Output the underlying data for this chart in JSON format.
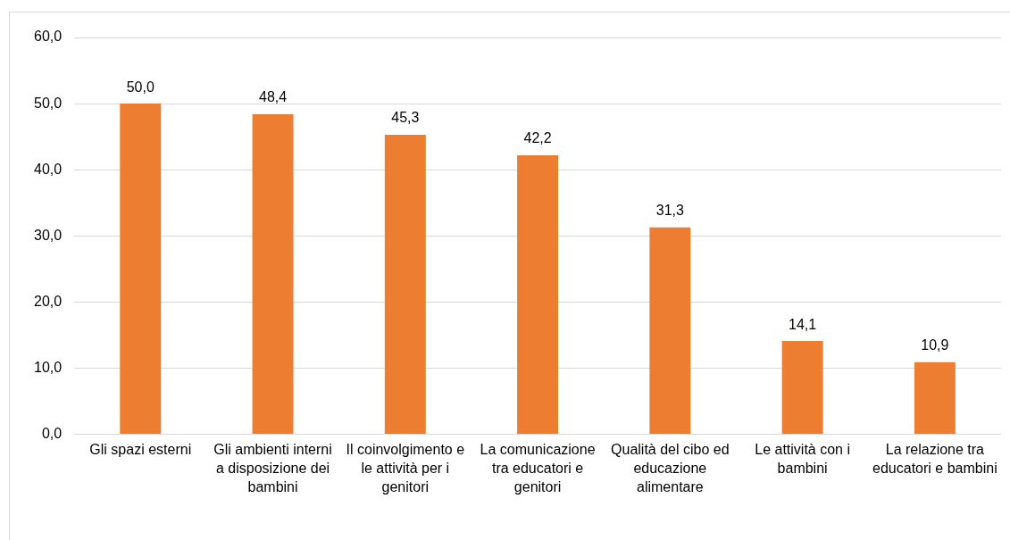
{
  "chart_data": {
    "type": "bar",
    "categories": [
      "Gli spazi esterni",
      "Gli ambienti interni a disposizione dei bambini",
      "Il coinvolgimento e le attività per i genitori",
      "La comunicazione tra educatori e genitori",
      "Qualità del cibo ed educazione alimentare",
      "Le attività con i bambini",
      "La relazione tra educatori e bambini"
    ],
    "values": [
      50.0,
      48.4,
      45.3,
      42.2,
      31.3,
      14.1,
      10.9
    ],
    "value_labels": [
      "50,0",
      "48,4",
      "45,3",
      "42,2",
      "31,3",
      "14,1",
      "10,9"
    ],
    "color": "#ed7d31",
    "ylim": [
      0,
      60
    ],
    "yticks": [
      {
        "value": 0,
        "label": "0,0"
      },
      {
        "value": 10,
        "label": "10,0"
      },
      {
        "value": 20,
        "label": "20,0"
      },
      {
        "value": 30,
        "label": "30,0"
      },
      {
        "value": 40,
        "label": "40,0"
      },
      {
        "value": 50,
        "label": "50,0"
      },
      {
        "value": 60,
        "label": "60,0"
      }
    ],
    "grid": "y"
  }
}
